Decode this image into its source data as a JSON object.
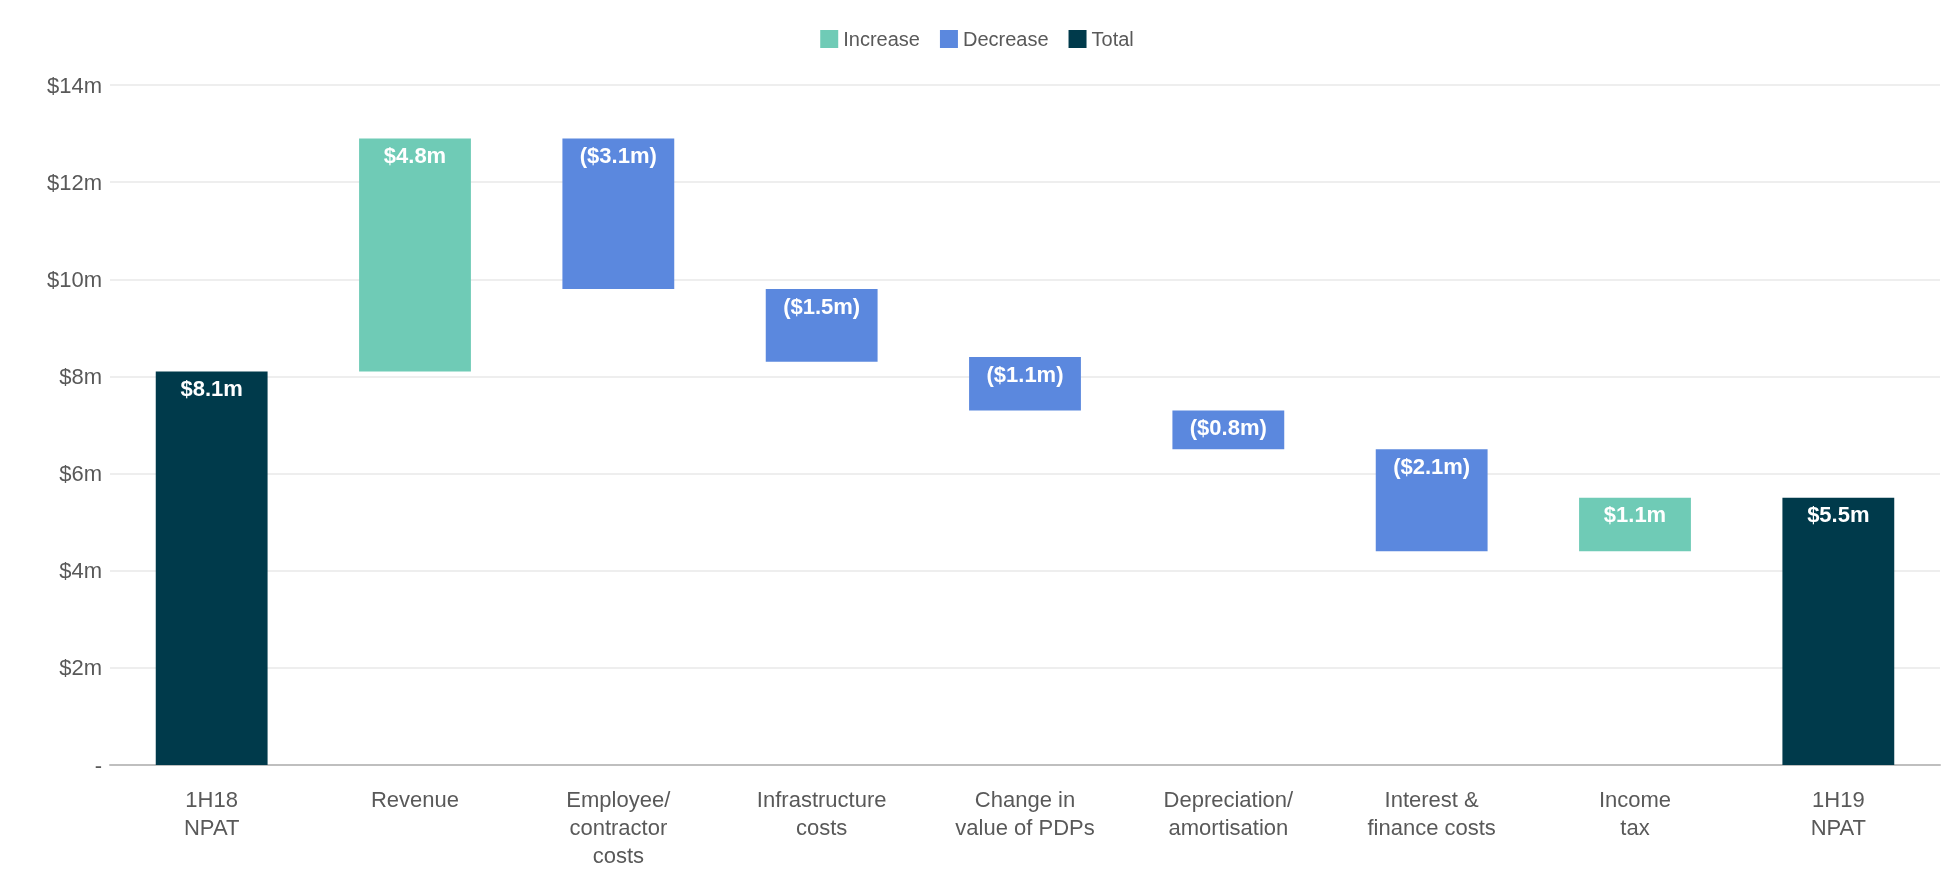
{
  "chart_data": {
    "type": "bar",
    "categories": [
      "1H18\nNPAT",
      "Revenue",
      "Employee/\ncontractor\ncosts",
      "Infrastructure\ncosts",
      "Change in\nvalue of PDPs",
      "Depreciation/\namortisation",
      "Interest &\nfinance costs",
      "Income\ntax",
      "1H19\nNPAT"
    ],
    "series": [
      {
        "name": "Increase",
        "color": "#6fcbb6",
        "values": [
          null,
          4.8,
          null,
          null,
          null,
          null,
          null,
          1.1,
          null
        ],
        "base": [
          null,
          8.1,
          null,
          null,
          null,
          null,
          null,
          4.4,
          null
        ],
        "value_labels": [
          null,
          "$4.8m",
          null,
          null,
          null,
          null,
          null,
          "$1.1m",
          null
        ]
      },
      {
        "name": "Decrease",
        "color": "#5b88de",
        "values": [
          null,
          null,
          -3.1,
          -1.5,
          -1.1,
          -0.8,
          -2.1,
          null,
          null
        ],
        "base": [
          null,
          null,
          12.9,
          9.8,
          8.4,
          7.3,
          6.5,
          null,
          null
        ],
        "value_labels": [
          null,
          null,
          "($3.1m)",
          "($1.5m)",
          "($1.1m)",
          "($0.8m)",
          "($2.1m)",
          null,
          null
        ]
      },
      {
        "name": "Total",
        "color": "#003a4b",
        "values": [
          8.1,
          null,
          null,
          null,
          null,
          null,
          null,
          null,
          5.5
        ],
        "value_labels": [
          "$8.1m",
          null,
          null,
          null,
          null,
          null,
          null,
          null,
          "$5.5m"
        ]
      }
    ],
    "ylim": [
      0,
      14
    ],
    "yticks": [
      {
        "value": 0,
        "label": "-"
      },
      {
        "value": 2,
        "label": "$2m"
      },
      {
        "value": 4,
        "label": "$4m"
      },
      {
        "value": 6,
        "label": "$6m"
      },
      {
        "value": 8,
        "label": "$8m"
      },
      {
        "value": 10,
        "label": "$10m"
      },
      {
        "value": 12,
        "label": "$12m"
      },
      {
        "value": 14,
        "label": "$14m"
      }
    ],
    "grid": "y",
    "legend": "top"
  }
}
